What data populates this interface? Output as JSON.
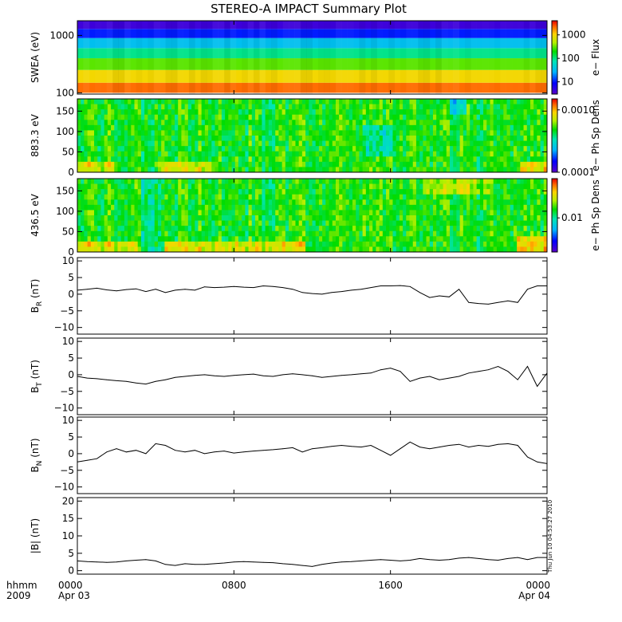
{
  "title": "STEREO-A IMPACT Summary Plot",
  "time_axis": {
    "label_line1": "hhmm",
    "label_line2": "2009",
    "ticks": [
      {
        "hhmm": "0000",
        "date": "Apr 03",
        "hour": 0
      },
      {
        "hhmm": "0800",
        "date": "",
        "hour": 8
      },
      {
        "hhmm": "1600",
        "date": "",
        "hour": 16
      },
      {
        "hhmm": "0000",
        "date": "Apr 04",
        "hour": 24
      }
    ],
    "range_hours": [
      0,
      24
    ]
  },
  "timestamp": "Thu Jun 10 04:53:27 2010",
  "colors": {
    "line": "#000000",
    "frame": "#000000",
    "background": "#ffffff"
  },
  "chart_data": [
    {
      "type": "heatmap",
      "id": "swea",
      "ylabel": "SWEA (eV)",
      "ylim": [
        95,
        1800
      ],
      "yscale": "log",
      "yticks": [
        {
          "value": 100,
          "label": "100"
        },
        {
          "value": 1000,
          "label": "1000"
        }
      ],
      "colorbar": {
        "label": "e− Flux",
        "scale": "log",
        "range": [
          3,
          4000
        ],
        "ticks": [
          {
            "value": 10,
            "label": "10"
          },
          {
            "value": 100,
            "label": "100"
          },
          {
            "value": 1000,
            "label": "1000"
          }
        ]
      },
      "profile": [
        {
          "energy": 100,
          "flux": 3000
        },
        {
          "energy": 150,
          "flux": 1500
        },
        {
          "energy": 250,
          "flux": 600
        },
        {
          "energy": 400,
          "flux": 150
        },
        {
          "energy": 600,
          "flux": 60
        },
        {
          "energy": 900,
          "flux": 18
        },
        {
          "energy": 1300,
          "flux": 6
        },
        {
          "energy": 1800,
          "flux": 3
        }
      ]
    },
    {
      "type": "heatmap",
      "id": "pad_883",
      "ylabel": "883.3 eV",
      "ylim": [
        0,
        180
      ],
      "yticks": [
        {
          "value": 0,
          "label": "0"
        },
        {
          "value": 50,
          "label": "50"
        },
        {
          "value": 100,
          "label": "100"
        },
        {
          "value": 150,
          "label": "150"
        }
      ],
      "colorbar": {
        "label": "e− Ph Sp Dens",
        "scale": "log",
        "range": [
          0.0001,
          0.0015
        ],
        "ticks": [
          {
            "value": 0.0001,
            "label": "0.0001"
          },
          {
            "value": 0.001,
            "label": "0.0010"
          }
        ]
      }
    },
    {
      "type": "heatmap",
      "id": "pad_436",
      "ylabel": "436.5 eV",
      "ylim": [
        0,
        180
      ],
      "yticks": [
        {
          "value": 0,
          "label": "0"
        },
        {
          "value": 50,
          "label": "50"
        },
        {
          "value": 100,
          "label": "100"
        },
        {
          "value": 150,
          "label": "150"
        }
      ],
      "colorbar": {
        "label": "e− Ph Sp Dens",
        "scale": "log",
        "range": [
          0.003,
          0.04
        ],
        "ticks": [
          {
            "value": 0.01,
            "label": "0.01"
          }
        ]
      }
    },
    {
      "type": "line",
      "id": "br",
      "ylabel_main": "B",
      "ylabel_sub": "R",
      "ylabel_unit": " (nT)",
      "ylim": [
        -12,
        11
      ],
      "yticks": [
        {
          "value": -10,
          "label": "−10"
        },
        {
          "value": -5,
          "label": "−5"
        },
        {
          "value": 0,
          "label": "0"
        },
        {
          "value": 5,
          "label": "5"
        },
        {
          "value": 10,
          "label": "10"
        }
      ],
      "x": [
        0,
        0.5,
        1,
        1.5,
        2,
        2.5,
        3,
        3.5,
        4,
        4.5,
        5,
        5.5,
        6,
        6.5,
        7,
        7.5,
        8,
        8.5,
        9,
        9.5,
        10,
        10.5,
        11,
        11.5,
        12,
        12.5,
        13,
        13.5,
        14,
        14.5,
        15,
        15.5,
        16,
        16.5,
        17,
        17.5,
        18,
        18.5,
        19,
        19.5,
        20,
        20.5,
        21,
        21.5,
        22,
        22.5,
        23,
        23.5,
        24
      ],
      "y": [
        1.2,
        1.5,
        1.8,
        1.3,
        1.0,
        1.4,
        1.6,
        0.8,
        1.5,
        0.5,
        1.2,
        1.5,
        1.2,
        2.2,
        2.0,
        2.1,
        2.3,
        2.1,
        2.0,
        2.5,
        2.3,
        2.0,
        1.5,
        0.5,
        0.2,
        0.0,
        0.5,
        0.8,
        1.2,
        1.5,
        2.0,
        2.5,
        2.5,
        2.6,
        2.3,
        0.5,
        -1.0,
        -0.5,
        -0.8,
        1.5,
        -2.5,
        -2.8,
        -3.0,
        -2.5,
        -2.0,
        -2.5,
        1.5,
        2.5,
        2.5
      ]
    },
    {
      "type": "line",
      "id": "bt",
      "ylabel_main": "B",
      "ylabel_sub": "T",
      "ylabel_unit": " (nT)",
      "ylim": [
        -12,
        11
      ],
      "yticks": [
        {
          "value": -10,
          "label": "−10"
        },
        {
          "value": -5,
          "label": "−5"
        },
        {
          "value": 0,
          "label": "0"
        },
        {
          "value": 5,
          "label": "5"
        },
        {
          "value": 10,
          "label": "10"
        }
      ],
      "x": [
        0,
        0.5,
        1,
        1.5,
        2,
        2.5,
        3,
        3.5,
        4,
        4.5,
        5,
        5.5,
        6,
        6.5,
        7,
        7.5,
        8,
        8.5,
        9,
        9.5,
        10,
        10.5,
        11,
        11.5,
        12,
        12.5,
        13,
        13.5,
        14,
        14.5,
        15,
        15.5,
        16,
        16.5,
        17,
        17.5,
        18,
        18.5,
        19,
        19.5,
        20,
        20.5,
        21,
        21.5,
        22,
        22.5,
        23,
        23.5,
        24
      ],
      "y": [
        -0.5,
        -1.0,
        -1.2,
        -1.5,
        -1.8,
        -2.0,
        -2.5,
        -2.8,
        -2.0,
        -1.5,
        -0.8,
        -0.5,
        -0.2,
        0.0,
        -0.3,
        -0.5,
        -0.2,
        0.0,
        0.2,
        -0.3,
        -0.5,
        0.0,
        0.3,
        0.0,
        -0.3,
        -0.8,
        -0.5,
        -0.2,
        0.0,
        0.3,
        0.5,
        1.5,
        2.0,
        1.0,
        -2.0,
        -1.0,
        -0.5,
        -1.5,
        -1.0,
        -0.5,
        0.5,
        1.0,
        1.5,
        2.5,
        1.0,
        -1.5,
        2.5,
        -3.5,
        0.5
      ]
    },
    {
      "type": "line",
      "id": "bn",
      "ylabel_main": "B",
      "ylabel_sub": "N",
      "ylabel_unit": " (nT)",
      "ylim": [
        -12,
        11
      ],
      "yticks": [
        {
          "value": -10,
          "label": "−10"
        },
        {
          "value": -5,
          "label": "−5"
        },
        {
          "value": 0,
          "label": "0"
        },
        {
          "value": 5,
          "label": "5"
        },
        {
          "value": 10,
          "label": "10"
        }
      ],
      "x": [
        0,
        0.5,
        1,
        1.5,
        2,
        2.5,
        3,
        3.5,
        4,
        4.5,
        5,
        5.5,
        6,
        6.5,
        7,
        7.5,
        8,
        8.5,
        9,
        9.5,
        10,
        10.5,
        11,
        11.5,
        12,
        12.5,
        13,
        13.5,
        14,
        14.5,
        15,
        15.5,
        16,
        16.5,
        17,
        17.5,
        18,
        18.5,
        19,
        19.5,
        20,
        20.5,
        21,
        21.5,
        22,
        22.5,
        23,
        23.5,
        24
      ],
      "y": [
        -2.5,
        -2.0,
        -1.5,
        0.5,
        1.5,
        0.5,
        1.0,
        0.0,
        3.0,
        2.5,
        1.0,
        0.5,
        1.0,
        0.0,
        0.5,
        0.8,
        0.2,
        0.5,
        0.8,
        1.0,
        1.2,
        1.5,
        1.8,
        0.5,
        1.5,
        1.8,
        2.2,
        2.5,
        2.2,
        2.0,
        2.5,
        1.0,
        -0.5,
        1.5,
        3.5,
        2.0,
        1.5,
        2.0,
        2.5,
        2.8,
        2.0,
        2.5,
        2.2,
        2.8,
        3.0,
        2.5,
        -1.0,
        -2.5,
        -3.0
      ]
    },
    {
      "type": "line",
      "id": "bmag",
      "ylabel_main": "|B| (nT)",
      "ylim": [
        -1,
        21
      ],
      "yticks": [
        {
          "value": 0,
          "label": "0"
        },
        {
          "value": 5,
          "label": "5"
        },
        {
          "value": 10,
          "label": "10"
        },
        {
          "value": 15,
          "label": "15"
        },
        {
          "value": 20,
          "label": "20"
        }
      ],
      "x": [
        0,
        0.5,
        1,
        1.5,
        2,
        2.5,
        3,
        3.5,
        4,
        4.5,
        5,
        5.5,
        6,
        6.5,
        7,
        7.5,
        8,
        8.5,
        9,
        9.5,
        10,
        10.5,
        11,
        11.5,
        12,
        12.5,
        13,
        13.5,
        14,
        14.5,
        15,
        15.5,
        16,
        16.5,
        17,
        17.5,
        18,
        18.5,
        19,
        19.5,
        20,
        20.5,
        21,
        21.5,
        22,
        22.5,
        23,
        23.5,
        24
      ],
      "y": [
        2.8,
        2.6,
        2.5,
        2.4,
        2.5,
        2.8,
        3.0,
        3.2,
        2.8,
        1.8,
        1.5,
        2.0,
        1.8,
        1.8,
        2.0,
        2.2,
        2.5,
        2.6,
        2.5,
        2.4,
        2.3,
        2.0,
        1.8,
        1.5,
        1.2,
        1.8,
        2.2,
        2.5,
        2.6,
        2.8,
        3.0,
        3.2,
        3.0,
        2.8,
        3.0,
        3.5,
        3.2,
        3.0,
        3.2,
        3.6,
        3.8,
        3.5,
        3.2,
        3.0,
        3.5,
        3.8,
        3.2,
        3.8,
        3.8
      ]
    }
  ]
}
